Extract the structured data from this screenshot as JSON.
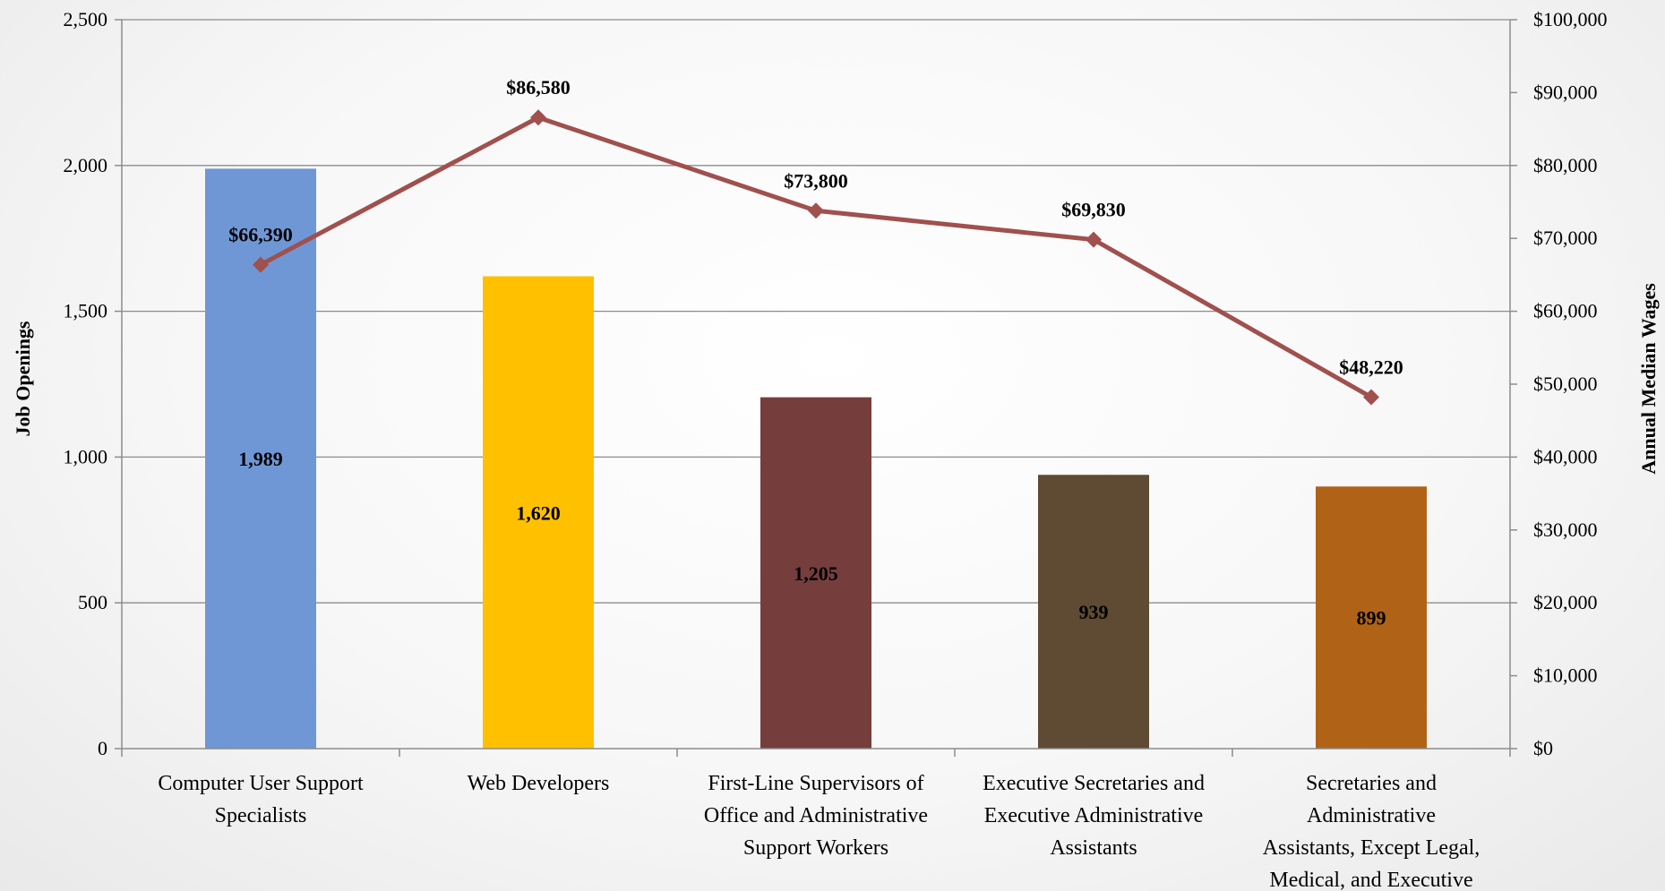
{
  "chart_data": {
    "type": "bar",
    "categories": [
      [
        "Computer User Support",
        "Specialists"
      ],
      [
        "Web Developers"
      ],
      [
        "First-Line Supervisors of",
        "Office and Administrative",
        "Support Workers"
      ],
      [
        "Executive Secretaries and",
        "Executive Administrative",
        "Assistants"
      ],
      [
        "Secretaries and",
        "Administrative",
        "Assistants, Except Legal,",
        "Medical, and Executive"
      ]
    ],
    "series": [
      {
        "type": "bar",
        "axis": "left",
        "values": [
          1989,
          1620,
          1205,
          939,
          899
        ],
        "labels": [
          "1,989",
          "1,620",
          "1,205",
          "939",
          "899"
        ],
        "colors": [
          "#6f97d6",
          "#ffc000",
          "#763d3d",
          "#5f4a33",
          "#b06317"
        ]
      },
      {
        "type": "line",
        "axis": "right",
        "values": [
          66390,
          86580,
          73800,
          69830,
          48220
        ],
        "labels": [
          "$66,390",
          "$86,580",
          "$73,800",
          "$69,830",
          "$48,220"
        ],
        "color": "#a0504d"
      }
    ],
    "ylabel": "Job Openings",
    "y2label": "Annual Median Wages",
    "ylim": [
      0,
      2500
    ],
    "y2lim": [
      0,
      100000
    ],
    "yticks": [
      "0",
      "500",
      "1,000",
      "1,500",
      "2,000",
      "2,500"
    ],
    "y2ticks": [
      "$0",
      "$10,000",
      "$20,000",
      "$30,000",
      "$40,000",
      "$50,000",
      "$60,000",
      "$70,000",
      "$80,000",
      "$90,000",
      "$100,000"
    ],
    "grid": true
  }
}
